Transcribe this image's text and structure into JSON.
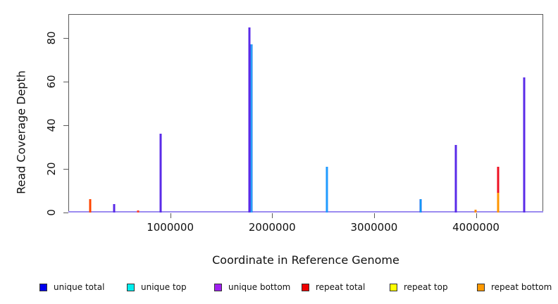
{
  "chart_data": {
    "type": "bar",
    "subtype": "coverage-spikes-vertical-lines",
    "title": "",
    "xlabel": "Coordinate in Reference Genome",
    "ylabel": "Read Coverage Depth",
    "xlim": [
      0,
      4660000
    ],
    "ylim": [
      0,
      91
    ],
    "grid": false,
    "axis_color": "#5a5a5a",
    "baseline_color": "#9b8bf0",
    "x_ticks": [
      {
        "value": 1000000,
        "label": "1000000"
      },
      {
        "value": 2000000,
        "label": "2000000"
      },
      {
        "value": 3000000,
        "label": "3000000"
      },
      {
        "value": 4000000,
        "label": "4000000"
      }
    ],
    "y_ticks": [
      {
        "value": 0,
        "label": "0"
      },
      {
        "value": 20,
        "label": "20"
      },
      {
        "value": 40,
        "label": "40"
      },
      {
        "value": 60,
        "label": "60"
      },
      {
        "value": 80,
        "label": "80"
      }
    ],
    "legend": {
      "position": "bottom",
      "entries": [
        {
          "label": "unique total",
          "color": "#0000EE"
        },
        {
          "label": "unique top",
          "color": "#00EEEE"
        },
        {
          "label": "unique bottom",
          "color": "#A020F0"
        },
        {
          "label": "repeat total",
          "color": "#EE0000"
        },
        {
          "label": "repeat top",
          "color": "#FFFF00"
        },
        {
          "label": "repeat bottom",
          "color": "#FF9900"
        }
      ]
    },
    "spikes": [
      {
        "x": 212000,
        "segments": [
          {
            "series": "repeat total",
            "y0": 0,
            "y1": 6,
            "color": "#FF4500"
          }
        ]
      },
      {
        "x": 450000,
        "segments": [
          {
            "series": "unique total",
            "y0": 0,
            "y1": 4,
            "color": "#5A2BE8"
          }
        ]
      },
      {
        "x": 685000,
        "segments": [
          {
            "series": "repeat total",
            "y0": 0,
            "y1": 1,
            "color": "#FF4433"
          }
        ]
      },
      {
        "x": 905000,
        "segments": [
          {
            "series": "unique bottom",
            "y0": 0,
            "y1": 36,
            "color": "#5A2BE8"
          }
        ]
      },
      {
        "x": 1778000,
        "segments": [
          {
            "series": "unique bottom",
            "y0": 0,
            "y1": 85,
            "color": "#5A2BE8"
          }
        ]
      },
      {
        "x": 1798000,
        "segments": [
          {
            "series": "unique top",
            "y0": 0,
            "y1": 77,
            "color": "#2277EE",
            "core": "#33CCFF"
          }
        ]
      },
      {
        "x": 2540000,
        "segments": [
          {
            "series": "unique top",
            "y0": 0,
            "y1": 21,
            "color": "#1E90FF",
            "core": "#22AAFF"
          }
        ]
      },
      {
        "x": 3455000,
        "segments": [
          {
            "series": "unique top",
            "y0": 0,
            "y1": 6,
            "color": "#2266EE",
            "core": "#00CCFF"
          }
        ]
      },
      {
        "x": 3800000,
        "segments": [
          {
            "series": "unique bottom",
            "y0": 0,
            "y1": 31,
            "color": "#5A2BE8"
          }
        ]
      },
      {
        "x": 3995000,
        "segments": [
          {
            "series": "repeat bottom",
            "y0": 0,
            "y1": 1.2,
            "color": "#FF8C00"
          }
        ]
      },
      {
        "x": 4215000,
        "segments": [
          {
            "series": "repeat bottom",
            "y0": 0,
            "y1": 9,
            "color": "#FF9500"
          },
          {
            "series": "repeat total",
            "y0": 9,
            "y1": 21,
            "color": "#EE1122"
          }
        ]
      },
      {
        "x": 4472000,
        "segments": [
          {
            "series": "unique bottom",
            "y0": 0,
            "y1": 62,
            "color": "#5A2BE8"
          }
        ]
      }
    ]
  }
}
